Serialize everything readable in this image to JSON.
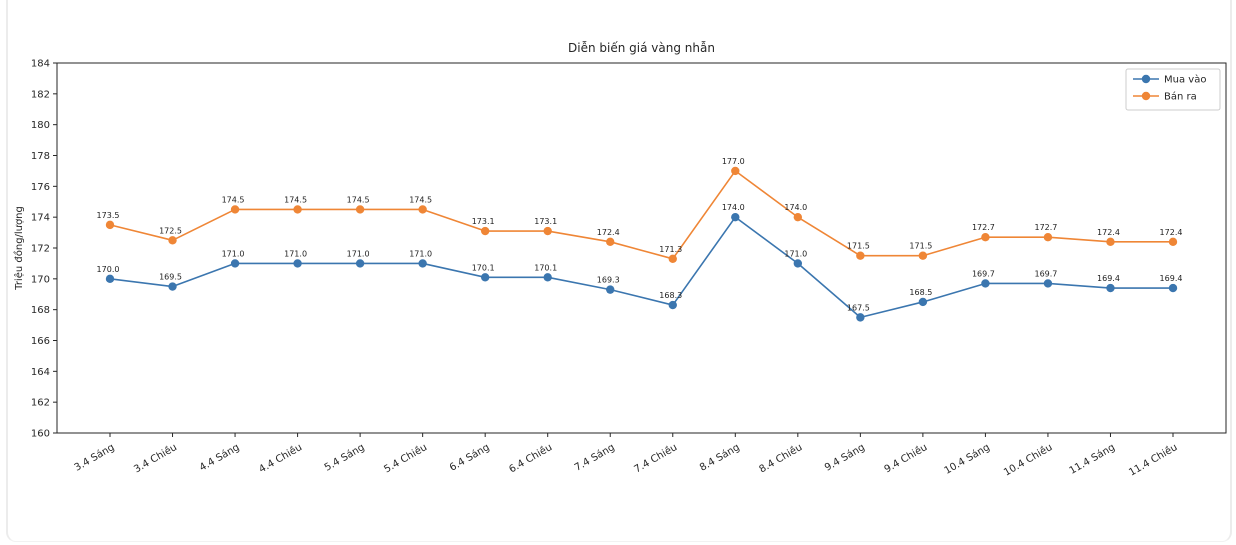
{
  "chart_data": {
    "type": "line",
    "title": "Diễn biến giá vàng nhẫn",
    "xlabel": "",
    "ylabel": "Triệu đồng/lượng",
    "ylim": [
      160,
      184
    ],
    "ytick_step": 2,
    "grid": false,
    "legend_position": "upper right",
    "point_labels": true,
    "categories": [
      "3.4 Sáng",
      "3.4 Chiều",
      "4.4 Sáng",
      "4.4 Chiều",
      "5.4 Sáng",
      "5.4 Chiều",
      "6.4 Sáng",
      "6.4 Chiều",
      "7.4 Sáng",
      "7.4 Chiều",
      "8.4 Sáng",
      "8.4 Chiều",
      "9.4 Sáng",
      "9.4 Chiều",
      "10.4 Sáng",
      "10.4 Chiều",
      "11.4 Sáng",
      "11.4 Chiều"
    ],
    "series": [
      {
        "name": "Mua vào",
        "color": "#3b76af",
        "values": [
          170.0,
          169.5,
          171.0,
          171.0,
          171.0,
          171.0,
          170.1,
          170.1,
          169.3,
          168.3,
          174.0,
          171.0,
          167.5,
          168.5,
          169.7,
          169.7,
          169.4,
          169.4
        ]
      },
      {
        "name": "Bán ra",
        "color": "#ef8636",
        "values": [
          173.5,
          172.5,
          174.5,
          174.5,
          174.5,
          174.5,
          173.1,
          173.1,
          172.4,
          171.3,
          177.0,
          174.0,
          171.5,
          171.5,
          172.7,
          172.7,
          172.4,
          172.4
        ]
      }
    ]
  },
  "colors": {
    "axis": "#262626",
    "tick_text": "#262626",
    "point_label_text": "#1f1f1f",
    "legend_border": "#cccccc",
    "legend_bg": "#ffffff"
  }
}
